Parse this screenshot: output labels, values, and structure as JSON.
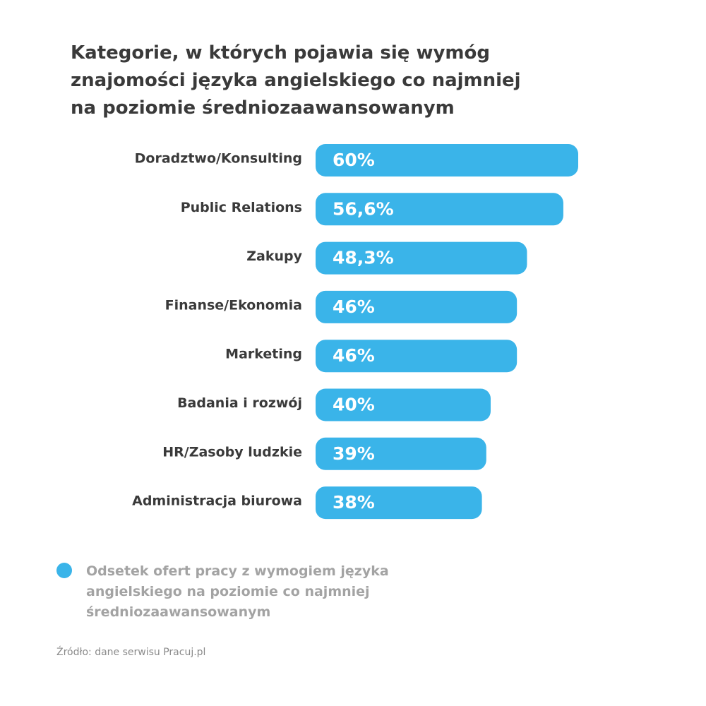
{
  "title_lines": [
    "Kategorie, w których pojawia się wymóg",
    "znajomości języka angielskiego co najmniej",
    "na poziomie średniozaawansowanym"
  ],
  "colors": {
    "bar": "#3ab4e9",
    "bar_label": "#ffffff",
    "category_label": "#3a3a3a",
    "title": "#3a3a3a",
    "legend_text": "#a3a3a3",
    "source": "#8a8a8a"
  },
  "chart_data": {
    "type": "bar",
    "orientation": "horizontal",
    "categories": [
      "Doradztwo/Konsulting",
      "Public Relations",
      "Zakupy",
      "Finanse/Ekonomia",
      "Marketing",
      "Badania i rozwój",
      "HR/Zasoby ludzkie",
      "Administracja biurowa"
    ],
    "values": [
      60,
      56.6,
      48.3,
      46,
      46,
      40,
      39,
      38
    ],
    "value_labels": [
      "60%",
      "56,6%",
      "48,3%",
      "46%",
      "46%",
      "40%",
      "39%",
      "38%"
    ],
    "legend": {
      "placement": "bottom-left",
      "lines": [
        "Odsetek ofert pracy z wymogiem języka",
        "angielskiego na poziomie co najmniej",
        "średniozaawansowanym"
      ]
    }
  },
  "source": "Źródło: dane serwisu Pracuj.pl"
}
